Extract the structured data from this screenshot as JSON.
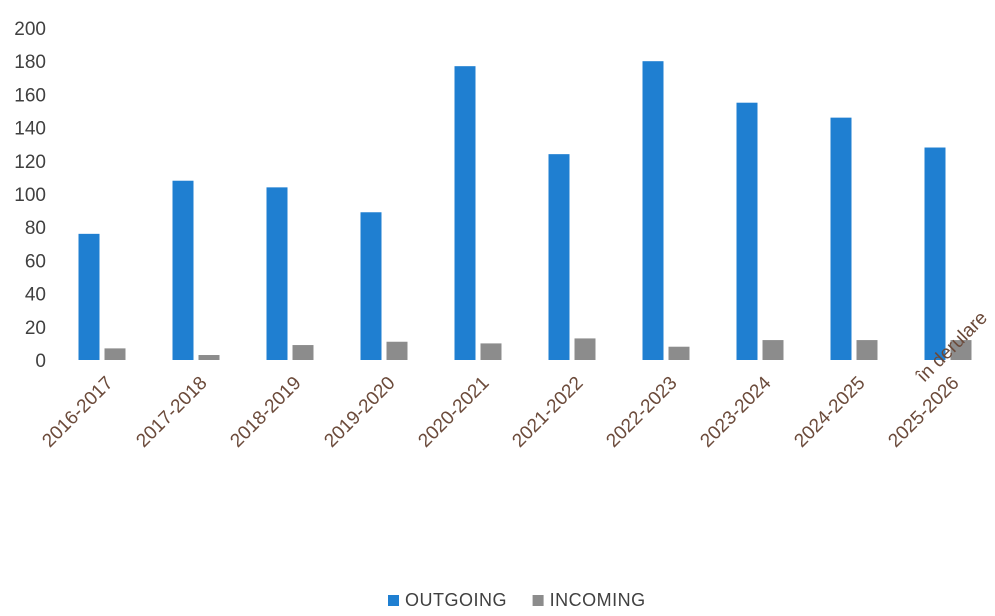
{
  "chart_data": {
    "type": "bar",
    "categories": [
      "2016-2017",
      "2017-2018",
      "2018-2019",
      "2019-2020",
      "2020-2021",
      "2021-2022",
      "2022-2023",
      "2023-2024",
      "2024-2025",
      "2025-2026 în derulare"
    ],
    "category_label_lines": [
      [
        "2016-2017"
      ],
      [
        "2017-2018"
      ],
      [
        "2018-2019"
      ],
      [
        "2019-2020"
      ],
      [
        "2020-2021"
      ],
      [
        "2021-2022"
      ],
      [
        "2022-2023"
      ],
      [
        "2023-2024"
      ],
      [
        "2024-2025"
      ],
      [
        "2025-2026",
        "în derulare"
      ]
    ],
    "series": [
      {
        "name": "OUTGOING",
        "values": [
          76,
          108,
          104,
          89,
          177,
          124,
          180,
          155,
          146,
          128
        ],
        "color": "#1f7fd1"
      },
      {
        "name": "INCOMING",
        "values": [
          7,
          3,
          9,
          11,
          10,
          13,
          8,
          12,
          12,
          12
        ],
        "color": "#8c8c8c"
      }
    ],
    "ylim": [
      0,
      200
    ],
    "yticks": [
      0,
      20,
      40,
      60,
      80,
      100,
      120,
      140,
      160,
      180,
      200
    ],
    "legend_position": "bottom",
    "grid": false
  }
}
